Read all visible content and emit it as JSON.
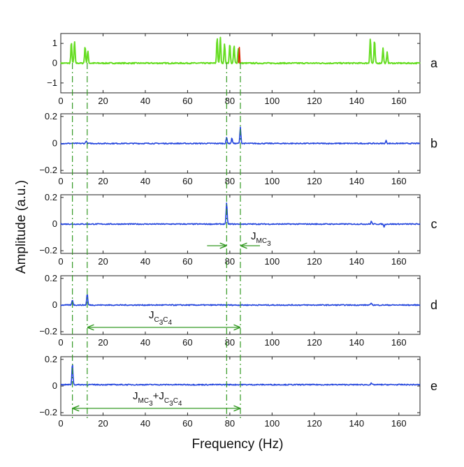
{
  "chart_data": {
    "type": "line",
    "xlabel": "Frequency (Hz)",
    "ylabel": "Amplitude (a.u.)",
    "xlim": [
      0,
      170
    ],
    "xticks": [
      0,
      20,
      40,
      60,
      80,
      100,
      120,
      140,
      160
    ],
    "xtick_labels": [
      "0",
      "20",
      "40",
      "60",
      "80",
      "100",
      "120",
      "140",
      "160"
    ],
    "vertical_guides_hz": [
      5.5,
      12.5,
      78.5,
      85
    ],
    "colors": {
      "green": "#66dd22",
      "red": "#dd2200",
      "blue": "#2244dd",
      "annot": "#339922"
    },
    "panels": [
      {
        "label": "a",
        "ylim": [
          -1.5,
          1.5
        ],
        "yticks": [
          -1,
          0,
          1
        ],
        "ytick_labels": [
          "−1",
          "0",
          "1"
        ],
        "series": [
          {
            "name": "green",
            "color": "#66dd22",
            "baseline": 0,
            "noise": 0.03,
            "peaks": [
              [
                5,
                1.05
              ],
              [
                6.5,
                1.1
              ],
              [
                11.5,
                0.85
              ],
              [
                12.8,
                0.6
              ],
              [
                74,
                1.3
              ],
              [
                75.5,
                1.3
              ],
              [
                77.5,
                1.0
              ],
              [
                80,
                1.0
              ],
              [
                82,
                0.9
              ],
              [
                84,
                0.75
              ],
              [
                146.5,
                1.25
              ],
              [
                148.5,
                1.15
              ],
              [
                152.5,
                0.75
              ],
              [
                154.5,
                0.55
              ]
            ]
          },
          {
            "name": "red",
            "color": "#dd2200",
            "baseline": 0,
            "noise": 0,
            "peaks": [
              [
                84.5,
                0.8
              ]
            ]
          }
        ]
      },
      {
        "label": "b",
        "ylim": [
          -0.22,
          0.22
        ],
        "yticks": [
          -0.2,
          0,
          0.2
        ],
        "ytick_labels": [
          "−0.2",
          "0",
          "0.2"
        ],
        "series": [
          {
            "name": "blue",
            "color": "#2244dd",
            "baseline": 0,
            "noise": 0.004,
            "peaks": [
              [
                12,
                0.02
              ],
              [
                78.5,
                0.045
              ],
              [
                81,
                0.04
              ],
              [
                85,
                0.12
              ],
              [
                154,
                0.02
              ]
            ]
          }
        ]
      },
      {
        "label": "c",
        "ylim": [
          -0.22,
          0.22
        ],
        "yticks": [
          -0.2,
          0,
          0.2
        ],
        "ytick_labels": [
          "−0.2",
          "0",
          "0.2"
        ],
        "series": [
          {
            "name": "blue",
            "color": "#2244dd",
            "baseline": 0,
            "noise": 0.004,
            "peaks": [
              [
                78.5,
                0.16
              ],
              [
                147,
                0.02
              ],
              [
                153,
                -0.02
              ]
            ]
          }
        ]
      },
      {
        "label": "d",
        "ylim": [
          -0.22,
          0.22
        ],
        "yticks": [
          -0.2,
          0,
          0.2
        ],
        "ytick_labels": [
          "−0.2",
          "0",
          "0.2"
        ],
        "series": [
          {
            "name": "blue",
            "color": "#2244dd",
            "baseline": 0,
            "noise": 0.004,
            "peaks": [
              [
                5.5,
                0.04
              ],
              [
                12.5,
                0.085
              ],
              [
                147,
                0.015
              ]
            ]
          }
        ]
      },
      {
        "label": "e",
        "ylim": [
          -0.22,
          0.22
        ],
        "yticks": [
          -0.2,
          0,
          0.2
        ],
        "ytick_labels": [
          "−0.2",
          "0",
          "0.2"
        ],
        "series": [
          {
            "name": "blue",
            "color": "#2244dd",
            "baseline": 0.01,
            "noise": 0.004,
            "peaks": [
              [
                5.5,
                0.16
              ],
              [
                147,
                0.01
              ]
            ]
          }
        ]
      }
    ],
    "annotations": [
      {
        "panel": "c",
        "kind": "inward-arrows",
        "from_hz": 78.5,
        "to_hz": 85,
        "text": "J",
        "sub": "MC",
        "subsub": "3"
      },
      {
        "panel": "d",
        "kind": "double-arrow",
        "from_hz": 12.5,
        "to_hz": 85,
        "text": "J",
        "sub": "C",
        "subsub": "3",
        "sub2": "C",
        "subsub2": "4"
      },
      {
        "panel": "e",
        "kind": "double-arrow",
        "from_hz": 5.5,
        "to_hz": 85,
        "text": "J",
        "sub": "MC",
        "subsub": "3",
        "plus": "+J",
        "sub2": "C",
        "subsub2": "3",
        "sub3": "C",
        "subsub3": "4"
      }
    ]
  }
}
